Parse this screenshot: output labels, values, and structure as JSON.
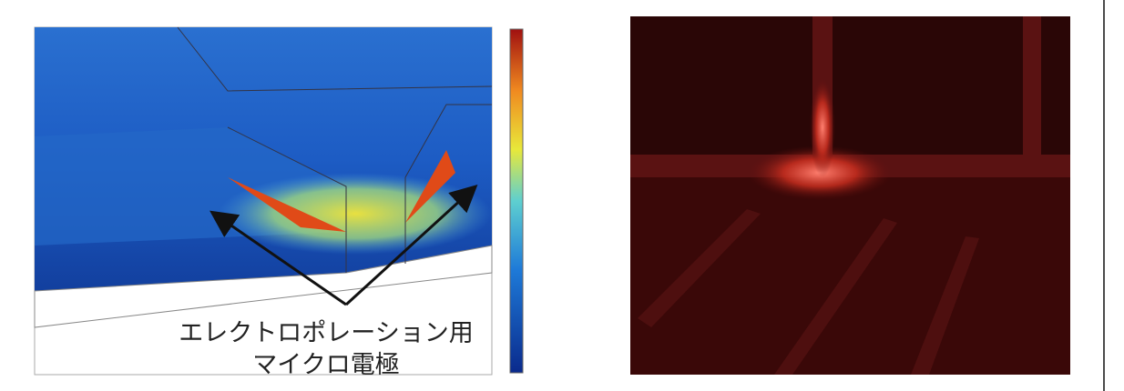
{
  "figure": {
    "annotation": {
      "line1": "エレクトロポレーション用",
      "line2": "マイクロ電極"
    }
  }
}
